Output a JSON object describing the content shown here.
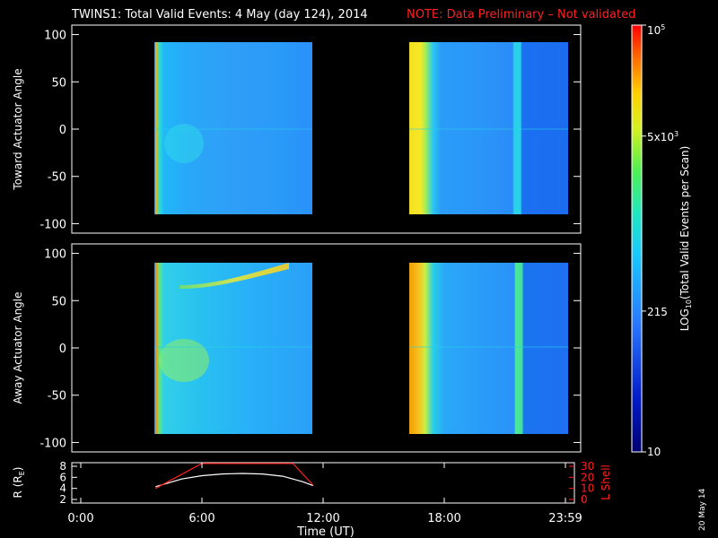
{
  "header": {
    "title": "TWINS1: Total Valid Events:  4 May (day 124), 2014",
    "note": "NOTE: Data Preliminary – Not validated",
    "note_color": "#ff2020"
  },
  "stamp": "20 May 14",
  "chart_data": [
    {
      "type": "heatmap",
      "ylabel": "Toward Actuator Angle",
      "ylim": [
        -110,
        110
      ],
      "yticks": [
        "100",
        "50",
        "0",
        "-50",
        "-100"
      ],
      "data_windows_hours": [
        [
          3.7,
          11.5
        ],
        [
          16.0,
          24.0
        ]
      ],
      "y_extent": [
        -88,
        90
      ]
    },
    {
      "type": "heatmap",
      "ylabel": "Away Actuator Angle",
      "ylim": [
        -110,
        110
      ],
      "yticks": [
        "100",
        "50",
        "0",
        "-50",
        "-100"
      ],
      "data_windows_hours": [
        [
          3.7,
          11.5
        ],
        [
          16.0,
          24.0
        ]
      ],
      "y_extent": [
        -88,
        90
      ]
    },
    {
      "type": "line",
      "ylabel": "R (RE)",
      "ylabel_text": "R (R",
      "ylabel_sub": "E",
      "ylabel_close": ")",
      "y2label": "L Shell",
      "ylim": [
        2,
        8
      ],
      "y2lim": [
        0,
        30
      ],
      "yticks": [
        "8",
        "6",
        "4",
        "2"
      ],
      "y2ticks": [
        "30",
        "20",
        "10",
        "0"
      ],
      "series": [
        {
          "color": "#ffffff",
          "x": [
            3.7,
            5,
            6,
            7,
            8,
            9,
            10,
            11,
            11.5
          ],
          "y": [
            4.3,
            5.7,
            6.3,
            6.6,
            6.7,
            6.6,
            6.2,
            5.2,
            4.5
          ]
        },
        {
          "color": "#ff2020",
          "x": [
            3.7,
            6.0,
            10.5,
            11.5
          ],
          "y": [
            4.0,
            8.5,
            8.5,
            4.6
          ]
        }
      ],
      "xlabel": "Time (UT)",
      "xticks": [
        "0:00",
        "6:00",
        "12:00",
        "18:00",
        "23:59"
      ]
    }
  ],
  "colorbar": {
    "label_main": "LOG",
    "label_sub": "10",
    "label_rest": "(Total Valid Events per Scan)",
    "ticks": [
      {
        "base": "10",
        "exp": "5",
        "frac": 1.0
      },
      {
        "base": "5x10",
        "exp": "3",
        "frac": 0.74
      },
      {
        "base": "215",
        "exp": "",
        "frac": 0.33
      },
      {
        "base": "10",
        "exp": "",
        "frac": 0.0
      }
    ]
  }
}
